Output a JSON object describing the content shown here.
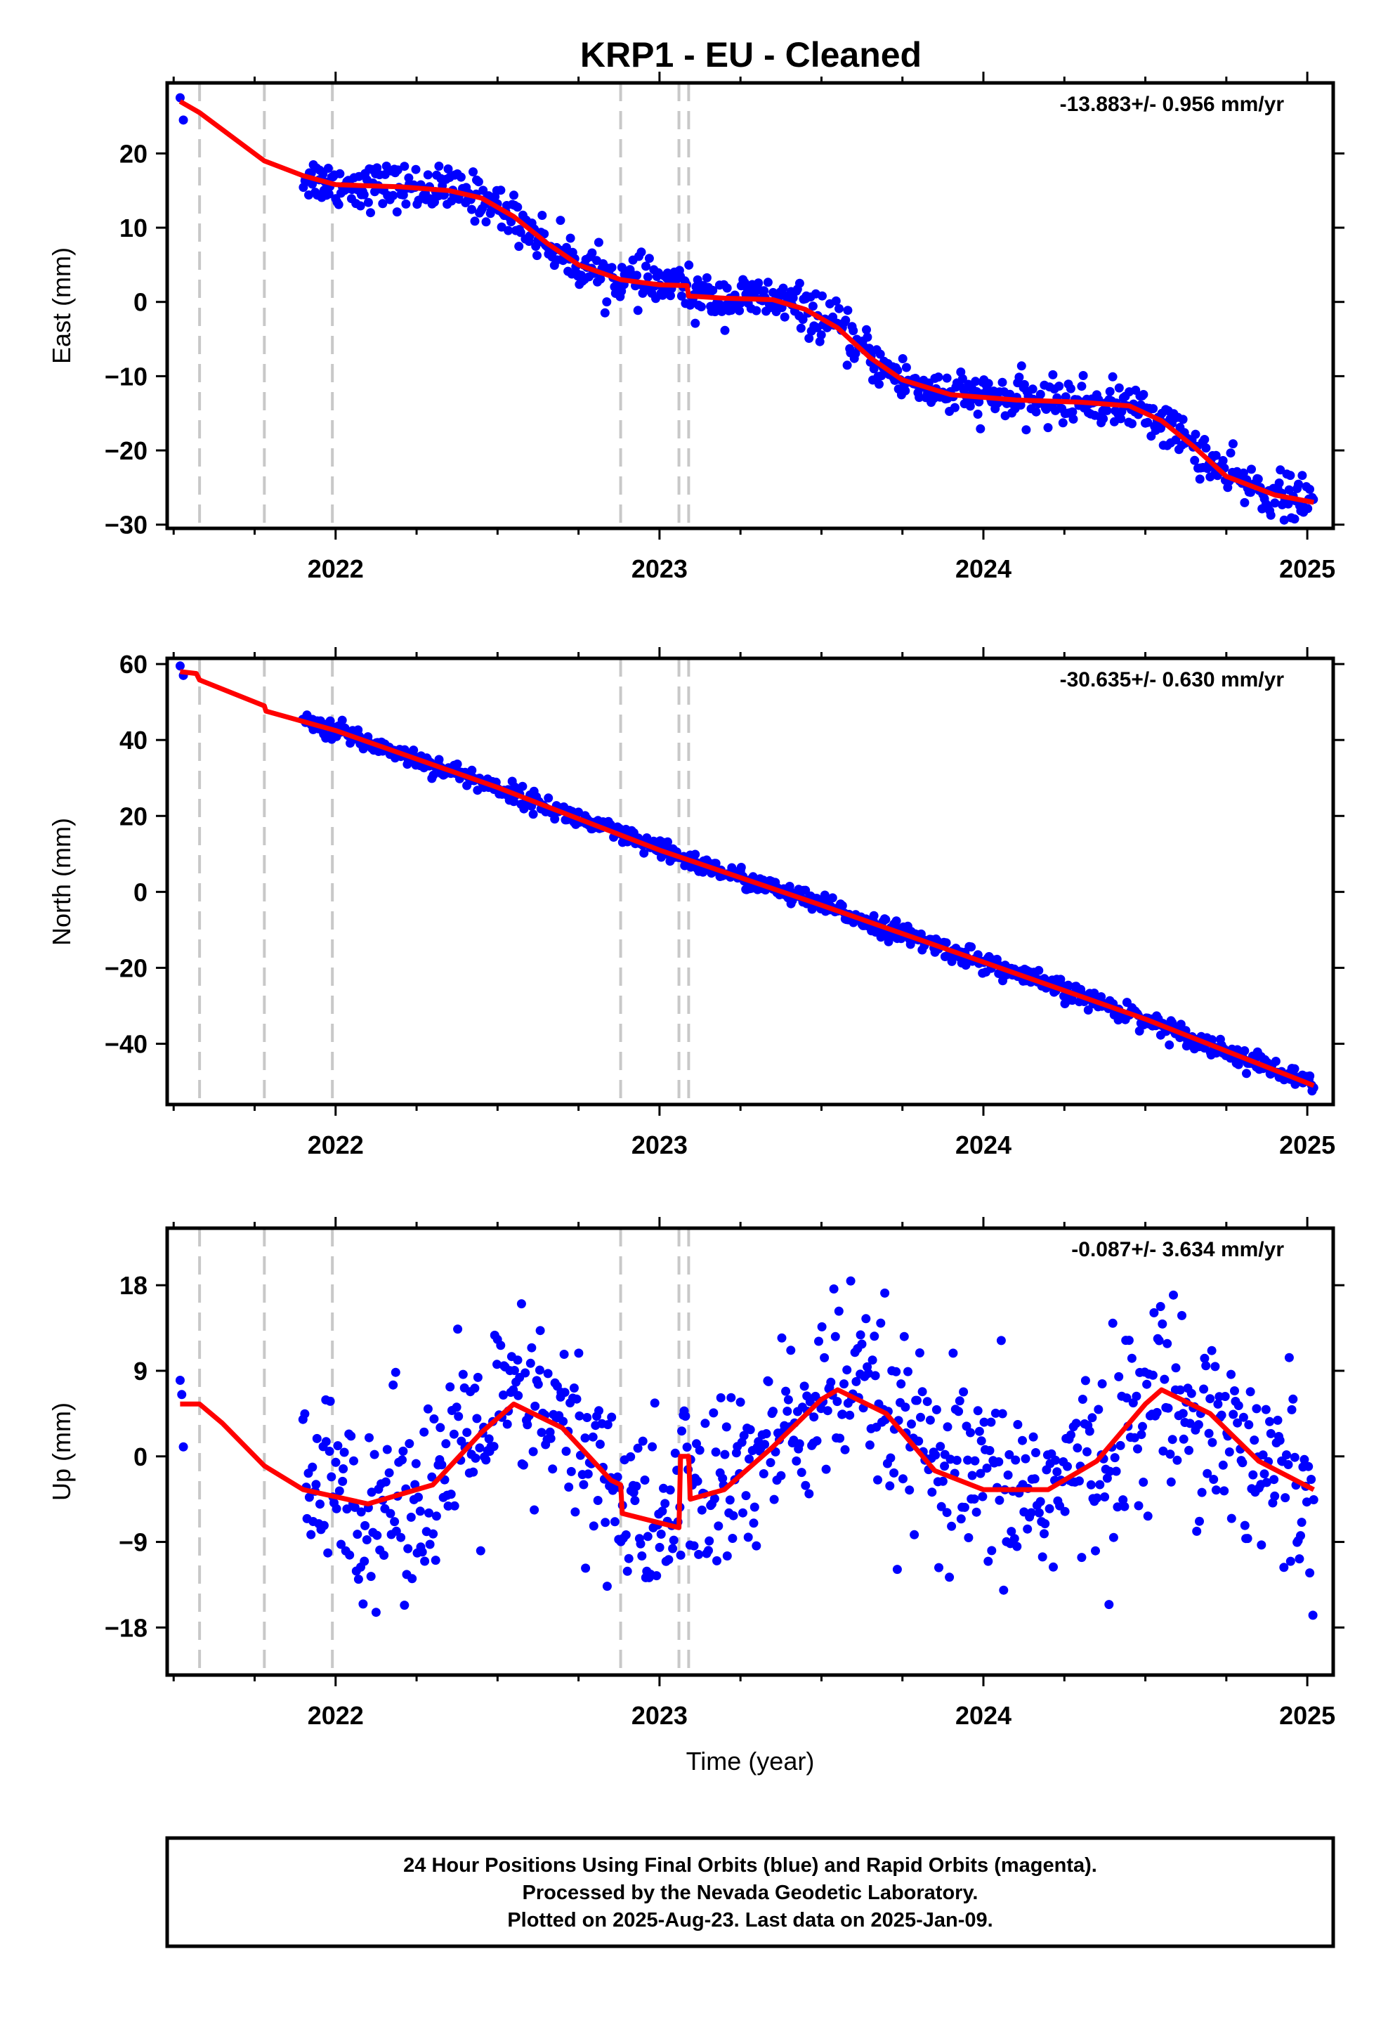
{
  "title": "KRP1  - EU - Cleaned",
  "footer": {
    "line1": "24 Hour Positions Using Final Orbits (blue) and Rapid Orbits (magenta).",
    "line2": "Processed by the Nevada Geodetic Laboratory.",
    "line3": "Plotted on 2025-Aug-23. Last data on 2025-Jan-09."
  },
  "colors": {
    "data": "#0000ff",
    "model": "#ff0000",
    "breaks": "#c8c8c8",
    "axis": "#000000"
  },
  "chart_data": [
    {
      "type": "scatter",
      "ylabel": "East (mm)",
      "xlabel": "",
      "rate_label": "-13.883+/- 0.956 mm/yr",
      "xlim": [
        2021.48,
        2025.08
      ],
      "ylim": [
        -30.5,
        29.5
      ],
      "x_ticks": [
        2022,
        2023,
        2024,
        2025
      ],
      "y_ticks": [
        20,
        10,
        0,
        -10,
        -20,
        -30
      ],
      "y_tick_labels": [
        "20",
        "10",
        "0",
        "−10",
        "−20",
        "−30"
      ],
      "equipment_breaks": [
        2021.58,
        2021.78,
        2021.99,
        2022.88,
        2023.06,
        2023.09
      ],
      "series": [
        {
          "x": [
            2021.52,
            2021.53
          ],
          "y": [
            27.5,
            24.5
          ]
        },
        {
          "model_anchors_x": [
            2021.52,
            2021.58,
            2021.78,
            2021.9,
            2022.0,
            2022.2,
            2022.35,
            2022.45,
            2022.55,
            2022.65,
            2022.75,
            2022.88,
            2023.0,
            2023.085,
            2023.09,
            2023.2,
            2023.35,
            2023.45,
            2023.55,
            2023.65,
            2023.75,
            2023.9,
            2024.1,
            2024.3,
            2024.45,
            2024.55,
            2024.65,
            2024.75,
            2024.9,
            2025.02
          ],
          "model_anchors_y": [
            27.0,
            25.5,
            19.0,
            17.0,
            15.8,
            15.5,
            15.0,
            14.0,
            11.5,
            8.0,
            5.0,
            3.0,
            2.3,
            2.2,
            0.8,
            0.5,
            0.3,
            -1.0,
            -3.5,
            -7.5,
            -10.5,
            -12.5,
            -13.2,
            -13.5,
            -14.0,
            -16.0,
            -19.5,
            -23.5,
            -26.0,
            -27.0
          ],
          "noise_mm": 1.5,
          "data_start": 2021.9,
          "data_end": 2025.02
        }
      ]
    },
    {
      "type": "scatter",
      "ylabel": "North (mm)",
      "xlabel": "",
      "rate_label": "-30.635+/- 0.630 mm/yr",
      "xlim": [
        2021.48,
        2025.08
      ],
      "ylim": [
        -56,
        61.5
      ],
      "x_ticks": [
        2022,
        2023,
        2024,
        2025
      ],
      "y_ticks": [
        60,
        40,
        20,
        0,
        -20,
        -40
      ],
      "y_tick_labels": [
        "60",
        "40",
        "20",
        "0",
        "−20",
        "−40"
      ],
      "equipment_breaks": [
        2021.58,
        2021.78,
        2021.99,
        2022.88,
        2023.06,
        2023.09
      ],
      "series": [
        {
          "x": [
            2021.52,
            2021.53
          ],
          "y": [
            59.5,
            57.0
          ]
        },
        {
          "model_anchors_x": [
            2021.52,
            2021.57,
            2021.58,
            2021.78,
            2021.785,
            2022.0,
            2022.5,
            2023.0,
            2023.5,
            2024.0,
            2024.5,
            2025.02
          ],
          "model_anchors_y": [
            58.0,
            57.5,
            55.8,
            49.0,
            47.6,
            42.5,
            27.5,
            11.0,
            -3.5,
            -18.5,
            -33.5,
            -51.0
          ],
          "noise_mm": 1.3,
          "data_start": 2021.9,
          "data_end": 2025.02
        }
      ]
    },
    {
      "type": "scatter",
      "ylabel": "Up (mm)",
      "xlabel": "Time (year)",
      "rate_label": "-0.087+/- 3.634 mm/yr",
      "xlim": [
        2021.48,
        2025.08
      ],
      "ylim": [
        -23,
        24
      ],
      "x_ticks": [
        2022,
        2023,
        2024,
        2025
      ],
      "y_ticks": [
        18,
        9,
        0,
        -9,
        -18
      ],
      "y_tick_labels": [
        "18",
        "9",
        "0",
        "−9",
        "−18"
      ],
      "equipment_breaks": [
        2021.58,
        2021.78,
        2021.99,
        2022.88,
        2023.06,
        2023.09
      ],
      "series": [
        {
          "x": [
            2021.52,
            2021.525,
            2021.53
          ],
          "y": [
            8.0,
            6.5,
            1.0
          ]
        },
        {
          "model_anchors_x": [
            2021.52,
            2021.58,
            2021.65,
            2021.78,
            2021.9,
            2022.1,
            2022.3,
            2022.45,
            2022.55,
            2022.7,
            2022.85,
            2022.88,
            2022.885,
            2023.06,
            2023.065,
            2023.09,
            2023.095,
            2023.2,
            2023.35,
            2023.5,
            2023.55,
            2023.7,
            2023.85,
            2024.0,
            2024.2,
            2024.35,
            2024.5,
            2024.55,
            2024.7,
            2024.85,
            2025.02
          ],
          "model_anchors_y": [
            5.5,
            5.5,
            3.5,
            -1.0,
            -3.5,
            -5.0,
            -3.0,
            2.5,
            5.5,
            3.0,
            -2.5,
            -3.0,
            -6.0,
            -7.5,
            0.0,
            0.0,
            -4.5,
            -3.5,
            1.0,
            6.0,
            7.0,
            4.5,
            -1.5,
            -3.5,
            -3.5,
            -0.5,
            5.5,
            7.0,
            4.5,
            -0.5,
            -3.5
          ],
          "noise_mm": 5.0,
          "data_start": 2021.9,
          "data_end": 2025.02
        }
      ]
    }
  ]
}
